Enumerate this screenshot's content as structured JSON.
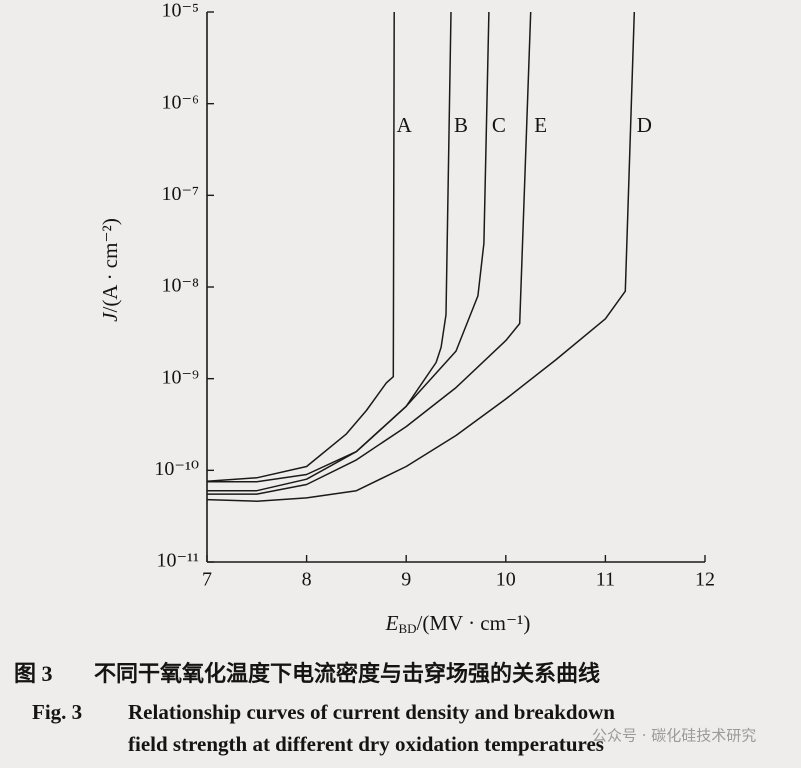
{
  "chart_data": {
    "type": "line",
    "x_label": [
      "E",
      "BD",
      "/(MV · cm⁻¹)"
    ],
    "y_label": [
      "J",
      "/(A · cm⁻²)"
    ],
    "xlim": [
      7,
      12
    ],
    "xticks": [
      7,
      8,
      9,
      10,
      11,
      12
    ],
    "ylim": [
      1e-11,
      1e-05
    ],
    "yscale": "log",
    "yticks": [
      {
        "value": 1e-11,
        "label": "10⁻¹¹"
      },
      {
        "value": 1e-10,
        "label": "10⁻¹⁰"
      },
      {
        "value": 1e-09,
        "label": "10⁻⁹"
      },
      {
        "value": 1e-08,
        "label": "10⁻⁸"
      },
      {
        "value": 1e-07,
        "label": "10⁻⁷"
      },
      {
        "value": 1e-06,
        "label": "10⁻⁶"
      },
      {
        "value": 1e-05,
        "label": "10⁻⁵"
      }
    ],
    "series": [
      {
        "name": "A",
        "color": "#1a1a1a",
        "x": [
          7,
          7.5,
          8,
          8.4,
          8.6,
          8.8,
          8.87,
          8.88
        ],
        "values": [
          7.6e-11,
          8.3e-11,
          1.1e-10,
          2.5e-10,
          4.5e-10,
          9e-10,
          1.05e-09,
          1e-05
        ]
      },
      {
        "name": "B",
        "color": "#1a1a1a",
        "x": [
          7,
          7.5,
          8,
          8.5,
          9,
          9.3,
          9.35,
          9.4,
          9.45
        ],
        "values": [
          7.5e-11,
          7.5e-11,
          9e-11,
          1.6e-10,
          5e-10,
          1.5e-09,
          2.2e-09,
          5e-09,
          1e-05
        ]
      },
      {
        "name": "C",
        "color": "#1a1a1a",
        "x": [
          7,
          7.5,
          8,
          8.5,
          9,
          9.5,
          9.72,
          9.78,
          9.83
        ],
        "values": [
          6e-11,
          6e-11,
          8e-11,
          1.6e-10,
          5e-10,
          2e-09,
          8e-09,
          3e-08,
          1e-05
        ]
      },
      {
        "name": "E",
        "color": "#1a1a1a",
        "x": [
          7,
          7.5,
          8,
          8.5,
          9,
          9.5,
          10,
          10.14,
          10.25
        ],
        "values": [
          5.5e-11,
          5.5e-11,
          7e-11,
          1.3e-10,
          3e-10,
          8e-10,
          2.6e-09,
          4e-09,
          1e-05
        ]
      },
      {
        "name": "D",
        "color": "#1a1a1a",
        "x": [
          7,
          7.5,
          8,
          8.5,
          9,
          9.5,
          10,
          10.5,
          11,
          11.2,
          11.29
        ],
        "values": [
          4.8e-11,
          4.6e-11,
          5e-11,
          6e-11,
          1.1e-10,
          2.4e-10,
          6e-10,
          1.6e-09,
          4.5e-09,
          9e-09,
          1e-05
        ]
      }
    ]
  },
  "caption": {
    "cn_label": "图 3",
    "cn_text": "不同干氧氧化温度下电流密度与击穿场强的关系曲线",
    "en_label": "Fig. 3",
    "en_line1": "Relationship curves of current density and breakdown",
    "en_line2": "field strength at different dry oxidation temperatures"
  },
  "watermark": "公众号 · 碳化硅技术研究"
}
